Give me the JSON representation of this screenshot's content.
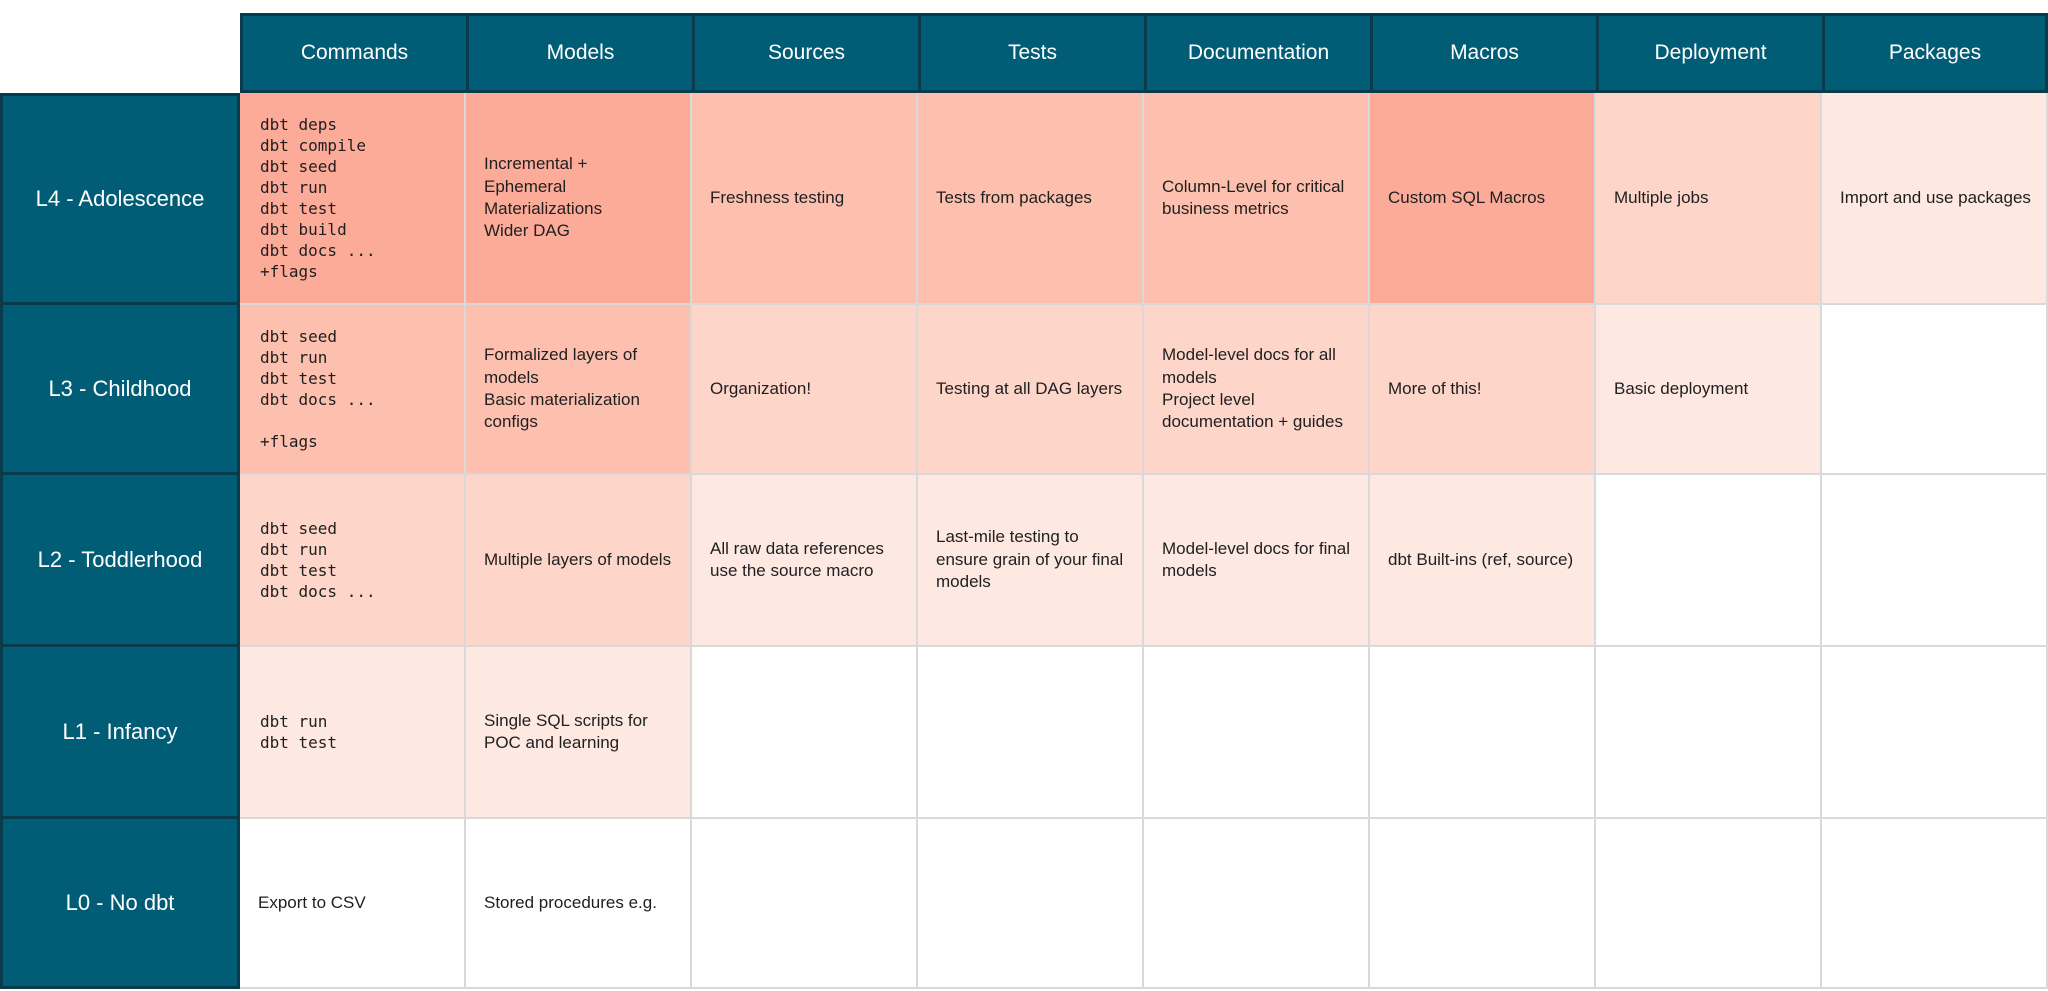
{
  "matrix": {
    "columns": [
      "Commands",
      "Models",
      "Sources",
      "Tests",
      "Documentation",
      "Macros",
      "Deployment",
      "Packages"
    ],
    "rows": [
      {
        "label": "L4 - Adolescence",
        "cells": [
          {
            "mono": true,
            "shade": 4,
            "lines": [
              "dbt deps",
              "dbt compile",
              "dbt seed",
              "dbt run",
              "dbt test",
              "dbt build",
              "dbt docs ...",
              "+flags"
            ]
          },
          {
            "mono": false,
            "shade": 4,
            "lines": [
              "Incremental +",
              "Ephemeral",
              "Materializations",
              "Wider DAG"
            ]
          },
          {
            "mono": false,
            "shade": 3,
            "lines": [
              "Freshness testing"
            ]
          },
          {
            "mono": false,
            "shade": 3,
            "lines": [
              "Tests from packages"
            ]
          },
          {
            "mono": false,
            "shade": 3,
            "lines": [
              "Column-Level for critical",
              "business metrics"
            ]
          },
          {
            "mono": false,
            "shade": 4,
            "lines": [
              "Custom SQL Macros"
            ]
          },
          {
            "mono": false,
            "shade": 2,
            "lines": [
              "Multiple jobs"
            ]
          },
          {
            "mono": false,
            "shade": 1,
            "lines": [
              "Import and use packages"
            ]
          }
        ]
      },
      {
        "label": "L3 - Childhood",
        "cells": [
          {
            "mono": true,
            "shade": 3,
            "lines": [
              "dbt seed",
              "dbt run",
              "dbt test",
              "dbt docs ...",
              "",
              "+flags"
            ]
          },
          {
            "mono": false,
            "shade": 3,
            "lines": [
              "Formalized layers of",
              "models",
              "Basic materialization",
              "configs"
            ]
          },
          {
            "mono": false,
            "shade": 2,
            "lines": [
              "Organization!"
            ]
          },
          {
            "mono": false,
            "shade": 2,
            "lines": [
              "Testing at all DAG layers"
            ]
          },
          {
            "mono": false,
            "shade": 2,
            "lines": [
              "Model-level docs for all",
              "models",
              "Project level",
              "documentation + guides"
            ]
          },
          {
            "mono": false,
            "shade": 2,
            "lines": [
              "More of this!"
            ]
          },
          {
            "mono": false,
            "shade": 1,
            "lines": [
              "Basic deployment"
            ]
          },
          {
            "mono": false,
            "shade": 0,
            "lines": []
          }
        ]
      },
      {
        "label": "L2 - Toddlerhood",
        "cells": [
          {
            "mono": true,
            "shade": 2,
            "lines": [
              "dbt seed",
              "dbt run",
              "dbt test",
              "dbt docs ..."
            ]
          },
          {
            "mono": false,
            "shade": 2,
            "lines": [
              "Multiple layers of models"
            ]
          },
          {
            "mono": false,
            "shade": 1,
            "lines": [
              "All raw data references",
              "use the source macro"
            ]
          },
          {
            "mono": false,
            "shade": 1,
            "lines": [
              "Last-mile testing to",
              "ensure grain of your final",
              "models"
            ]
          },
          {
            "mono": false,
            "shade": 1,
            "lines": [
              "Model-level docs for final",
              "models"
            ]
          },
          {
            "mono": false,
            "shade": 1,
            "lines": [
              "dbt Built-ins (ref, source)"
            ]
          },
          {
            "mono": false,
            "shade": 0,
            "lines": []
          },
          {
            "mono": false,
            "shade": 0,
            "lines": []
          }
        ]
      },
      {
        "label": "L1 - Infancy",
        "cells": [
          {
            "mono": true,
            "shade": 1,
            "lines": [
              "dbt run",
              "dbt test"
            ]
          },
          {
            "mono": false,
            "shade": 1,
            "lines": [
              "Single SQL scripts for",
              "POC and learning"
            ]
          },
          {
            "mono": false,
            "shade": 0,
            "lines": []
          },
          {
            "mono": false,
            "shade": 0,
            "lines": []
          },
          {
            "mono": false,
            "shade": 0,
            "lines": []
          },
          {
            "mono": false,
            "shade": 0,
            "lines": []
          },
          {
            "mono": false,
            "shade": 0,
            "lines": []
          },
          {
            "mono": false,
            "shade": 0,
            "lines": []
          }
        ]
      },
      {
        "label": "L0 - No dbt",
        "cells": [
          {
            "mono": false,
            "shade": 0,
            "lines": [
              "Export to CSV"
            ]
          },
          {
            "mono": false,
            "shade": 0,
            "lines": [
              "Stored procedures e.g."
            ]
          },
          {
            "mono": false,
            "shade": 0,
            "lines": []
          },
          {
            "mono": false,
            "shade": 0,
            "lines": []
          },
          {
            "mono": false,
            "shade": 0,
            "lines": []
          },
          {
            "mono": false,
            "shade": 0,
            "lines": []
          },
          {
            "mono": false,
            "shade": 0,
            "lines": []
          },
          {
            "mono": false,
            "shade": 0,
            "lines": []
          }
        ]
      }
    ]
  },
  "colors": {
    "header_teal": "#015D76",
    "dark_border": "#0A3B4C",
    "grid_line": "#D9D9D9",
    "header_text": "#FFFFFF",
    "cell_text": "#1F1F1F",
    "shade4": "#FCAB99",
    "shade3": "#FDC0AF",
    "shade2": "#FDD5C9",
    "shade1": "#FEE8E2",
    "shade0": "#FFFFFF"
  }
}
